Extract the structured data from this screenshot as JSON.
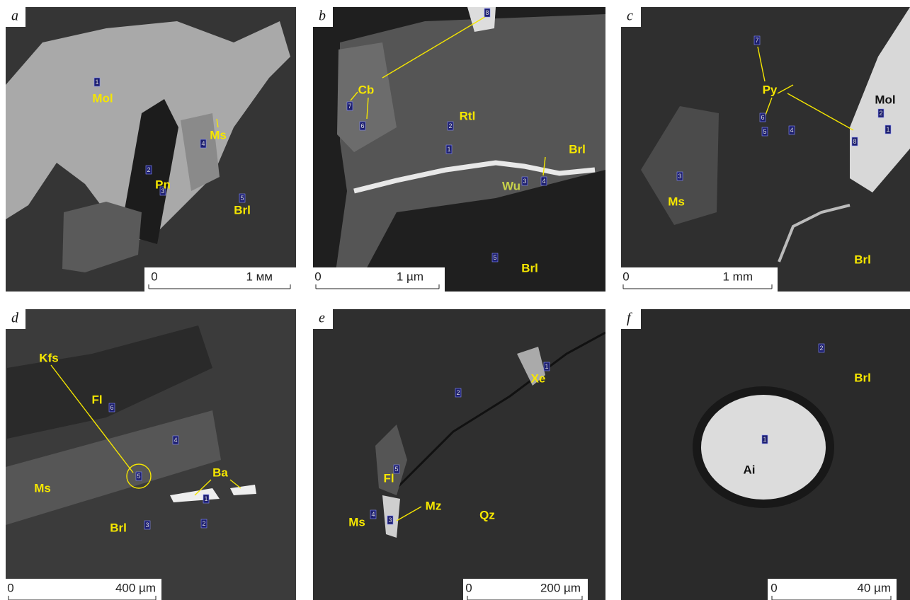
{
  "panels": [
    {
      "letter": "a",
      "labels": [
        "Mol",
        "Ms",
        "Pn",
        "Brl"
      ],
      "points": [
        "1",
        "4",
        "2",
        "3",
        "5"
      ],
      "scale": {
        "zero": "0",
        "length": "1 мм"
      }
    },
    {
      "letter": "b",
      "labels": [
        "Cb",
        "Rtl",
        "Brl",
        "Wu",
        "Brl"
      ],
      "points": [
        "8",
        "7",
        "6",
        "2",
        "1",
        "4",
        "3",
        "5"
      ],
      "scale": {
        "zero": "0",
        "length": "1 µm"
      }
    },
    {
      "letter": "c",
      "labels": [
        "Py",
        "Mol",
        "Ms",
        "Brl"
      ],
      "points": [
        "7",
        "6",
        "5",
        "4",
        "8",
        "2",
        "1",
        "3"
      ],
      "scale": {
        "zero": "0",
        "length": "1 mm"
      }
    },
    {
      "letter": "d",
      "labels": [
        "Kfs",
        "Fl",
        "Ms",
        "Ba",
        "Brl"
      ],
      "points": [
        "6",
        "4",
        "5",
        "1",
        "3",
        "2"
      ],
      "scale": {
        "zero": "0",
        "length": "400 µm"
      }
    },
    {
      "letter": "e",
      "labels": [
        "Xe",
        "Fl",
        "Ms",
        "Mz",
        "Qz"
      ],
      "points": [
        "1",
        "2",
        "5",
        "4",
        "3"
      ],
      "scale": {
        "zero": "0",
        "length": "200 µm"
      }
    },
    {
      "letter": "f",
      "labels": [
        "Brl",
        "Ai"
      ],
      "points": [
        "2",
        "1"
      ],
      "scale": {
        "zero": "0",
        "length": "40 µm"
      }
    }
  ]
}
